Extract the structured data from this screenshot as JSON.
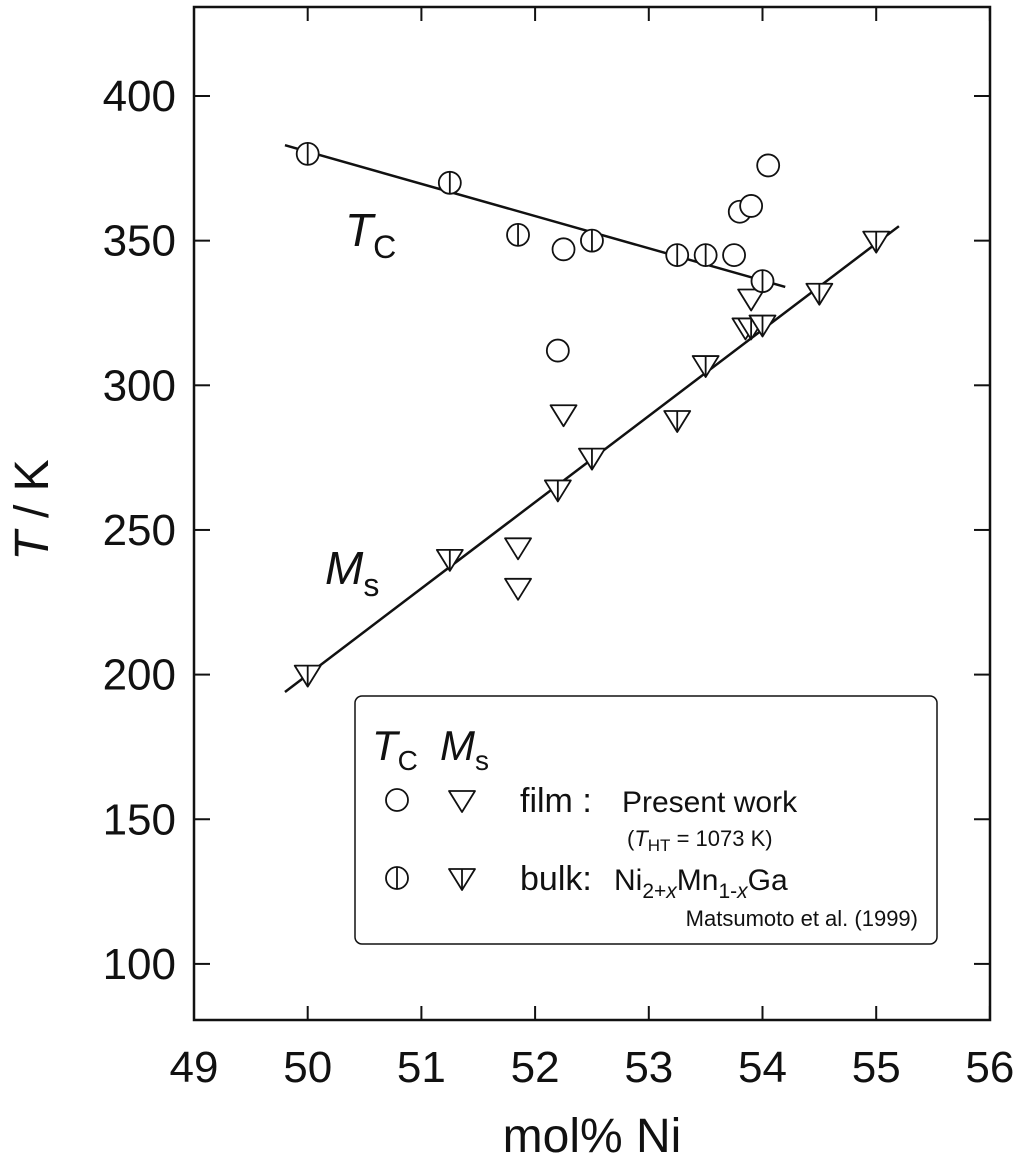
{
  "chart_data": {
    "type": "scatter",
    "xlabel": "mol% Ni",
    "ylabel": {
      "italic": "T",
      "rest": " / K"
    },
    "xlim": [
      49,
      56
    ],
    "ylim": [
      70,
      430
    ],
    "x_ticks": [
      49,
      50,
      51,
      52,
      53,
      54,
      55,
      56
    ],
    "y_ticks": [
      100,
      150,
      200,
      250,
      300,
      350,
      400
    ],
    "grid": false,
    "series": [
      {
        "marker": "open-circle",
        "points": [
          [
            52.2,
            312
          ],
          [
            52.25,
            347
          ],
          [
            53.75,
            345
          ],
          [
            53.8,
            360
          ],
          [
            53.9,
            362
          ],
          [
            54.05,
            376
          ]
        ]
      },
      {
        "marker": "open-triangle-down",
        "points": [
          [
            51.85,
            244
          ],
          [
            51.85,
            230
          ],
          [
            52.25,
            290
          ],
          [
            53.9,
            330
          ],
          [
            53.85,
            320
          ]
        ]
      },
      {
        "marker": "half-circle",
        "points": [
          [
            50.0,
            380
          ],
          [
            51.25,
            370
          ],
          [
            51.85,
            352
          ],
          [
            52.5,
            350
          ],
          [
            53.25,
            345
          ],
          [
            53.5,
            345
          ],
          [
            54.0,
            336
          ]
        ]
      },
      {
        "marker": "half-triangle-down",
        "points": [
          [
            50.0,
            200
          ],
          [
            51.25,
            240
          ],
          [
            52.2,
            264
          ],
          [
            52.5,
            275
          ],
          [
            53.25,
            288
          ],
          [
            53.5,
            307
          ],
          [
            53.9,
            320
          ],
          [
            54.0,
            321
          ],
          [
            54.5,
            332
          ],
          [
            55.0,
            350
          ]
        ]
      }
    ],
    "fit_lines": [
      {
        "points": [
          [
            49.8,
            383
          ],
          [
            54.2,
            334
          ]
        ]
      },
      {
        "points": [
          [
            49.8,
            194
          ],
          [
            55.2,
            355
          ]
        ]
      }
    ],
    "annotations": {
      "tc": {
        "main": "T",
        "sub": "C"
      },
      "ms": {
        "main": "M",
        "sub": "s"
      }
    },
    "legend": {
      "placement": "bottom-right",
      "header_tc_main": "T",
      "header_tc_sub": "C",
      "header_ms_main": "M",
      "header_ms_sub": "s",
      "film_label": "film :",
      "film_desc": "Present work",
      "film_note_open": "(",
      "film_note_main": "T",
      "film_note_sub": "HT",
      "film_note_rest": " = 1073 K)",
      "bulk_label": "bulk:",
      "bulk_formula": [
        {
          "t": "Ni",
          "sub": false
        },
        {
          "t": "2+",
          "sub": true
        },
        {
          "t": "x",
          "sub": true,
          "italic": true
        },
        {
          "t": "Mn",
          "sub": false
        },
        {
          "t": "1-",
          "sub": true
        },
        {
          "t": "x",
          "sub": true,
          "italic": true
        },
        {
          "t": "Ga",
          "sub": false
        }
      ],
      "bulk_ref": "Matsumoto et al. (1999)"
    }
  }
}
